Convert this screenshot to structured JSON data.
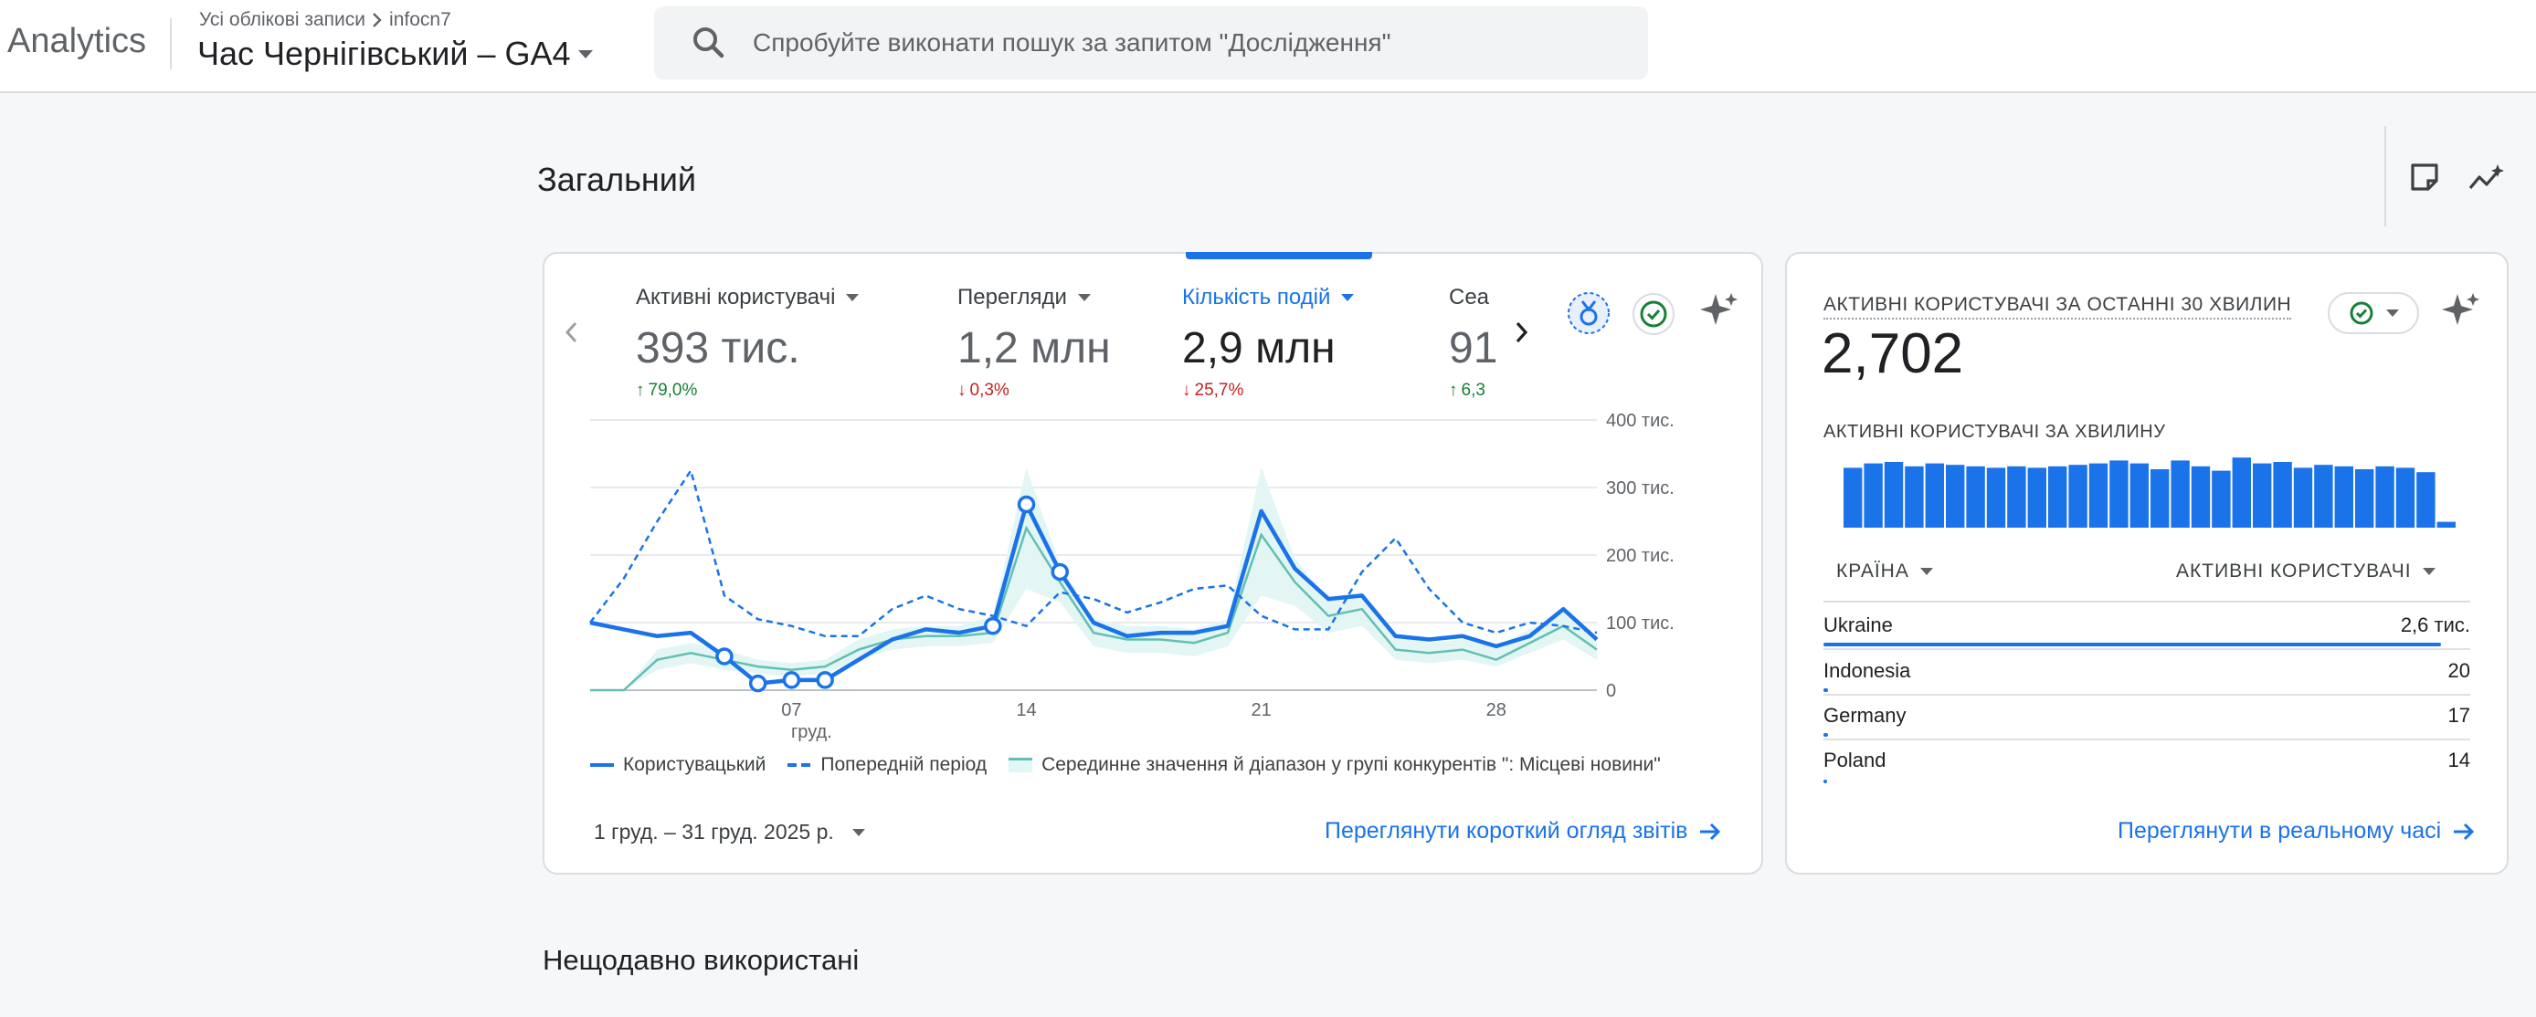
{
  "app": {
    "name": "Analytics",
    "breadcrumb": [
      "Усі облікові записи",
      "infocn7"
    ],
    "property": "Час Чернігівський – GA4"
  },
  "search": {
    "placeholder": "Спробуйте виконати пошук за запитом \"Дослідження\""
  },
  "page": {
    "title": "Загальний",
    "recent_title": "Нещодавно використані"
  },
  "overview": {
    "metrics": [
      {
        "label": "Активні користувачі",
        "value": "393 тис.",
        "delta": "79,0%",
        "direction": "up"
      },
      {
        "label": "Перегляди",
        "value": "1,2 млн",
        "delta": "0,3%",
        "direction": "down"
      },
      {
        "label": "Кількість подій",
        "value": "2,9 млн",
        "delta": "25,7%",
        "direction": "down",
        "active": true
      },
      {
        "label": "Сеа",
        "value": "91",
        "delta": "6,3",
        "direction": "up"
      }
    ],
    "date_range": "1 груд. – 31 груд. 2025 р.",
    "link": "Переглянути короткий огляд звітів",
    "legend": {
      "current": "Користувацький",
      "previous": "Попередній період",
      "benchmark": "Серединне значення й діапазон у групі конкурентів \": Місцеві новини\""
    }
  },
  "chart_data": {
    "type": "line",
    "x": [
      1,
      2,
      3,
      4,
      5,
      6,
      7,
      8,
      9,
      10,
      11,
      12,
      13,
      14,
      15,
      16,
      17,
      18,
      19,
      20,
      21,
      22,
      23,
      24,
      25,
      26,
      27,
      28,
      29,
      30,
      31
    ],
    "x_tick_labels": [
      {
        "x": 7,
        "label": "07",
        "sublabel": "груд."
      },
      {
        "x": 14,
        "label": "14"
      },
      {
        "x": 21,
        "label": "21"
      },
      {
        "x": 28,
        "label": "28"
      }
    ],
    "y_ticks": [
      "0",
      "100 тис.",
      "200 тис.",
      "300 тис.",
      "400 тис."
    ],
    "ylim": [
      0,
      400000
    ],
    "series": [
      {
        "name": "Користувацький",
        "style": "solid",
        "values": [
          100000,
          90000,
          80000,
          85000,
          50000,
          10000,
          15000,
          15000,
          45000,
          75000,
          90000,
          85000,
          95000,
          275000,
          175000,
          100000,
          80000,
          85000,
          85000,
          95000,
          265000,
          180000,
          135000,
          140000,
          80000,
          75000,
          80000,
          65000,
          80000,
          120000,
          75000
        ],
        "marked_points": [
          5,
          6,
          7,
          8,
          13,
          14,
          15
        ]
      },
      {
        "name": "Попередній період",
        "style": "dashed",
        "values": [
          100000,
          165000,
          250000,
          325000,
          140000,
          105000,
          95000,
          80000,
          80000,
          120000,
          140000,
          120000,
          110000,
          95000,
          145000,
          135000,
          115000,
          130000,
          150000,
          155000,
          110000,
          90000,
          90000,
          175000,
          225000,
          150000,
          100000,
          85000,
          100000,
          95000,
          85000
        ]
      },
      {
        "name": "Серединне значення й діапазон у групі конкурентів \": Місцеві новини\"",
        "style": "band",
        "values": [
          0,
          0,
          45000,
          55000,
          45000,
          35000,
          30000,
          35000,
          60000,
          75000,
          80000,
          80000,
          85000,
          240000,
          160000,
          85000,
          75000,
          75000,
          70000,
          85000,
          230000,
          160000,
          110000,
          120000,
          60000,
          55000,
          60000,
          45000,
          70000,
          95000,
          60000
        ],
        "range_high": [
          0,
          0,
          60000,
          70000,
          60000,
          45000,
          40000,
          45000,
          75000,
          90000,
          95000,
          95000,
          110000,
          330000,
          185000,
          105000,
          95000,
          95000,
          90000,
          105000,
          330000,
          195000,
          135000,
          145000,
          80000,
          70000,
          75000,
          65000,
          90000,
          115000,
          80000
        ],
        "range_low": [
          0,
          0,
          30000,
          40000,
          30000,
          25000,
          20000,
          25000,
          45000,
          60000,
          65000,
          65000,
          70000,
          150000,
          130000,
          65000,
          55000,
          55000,
          50000,
          65000,
          140000,
          125000,
          85000,
          95000,
          45000,
          40000,
          45000,
          35000,
          55000,
          75000,
          45000
        ]
      }
    ]
  },
  "realtime": {
    "title": "АКТИВНІ КОРИСТУВАЧІ ЗА ОСТАННІ 30 ХВИЛИН",
    "value": "2,702",
    "subtitle": "АКТИВНІ КОРИСТУВАЧІ ЗА ХВИЛИНУ",
    "per_minute": [
      82,
      88,
      90,
      84,
      88,
      86,
      84,
      82,
      84,
      82,
      84,
      86,
      88,
      92,
      88,
      80,
      92,
      84,
      78,
      96,
      88,
      90,
      82,
      86,
      84,
      80,
      84,
      82,
      76,
      8
    ],
    "col_country": "КРАЇНА",
    "col_users": "АКТИВНІ КОРИСТУВАЧІ",
    "countries": [
      {
        "name": "Ukraine",
        "value": "2,6 тис.",
        "share": 1.0
      },
      {
        "name": "Indonesia",
        "value": "20",
        "share": 0.008
      },
      {
        "name": "Germany",
        "value": "17",
        "share": 0.007
      },
      {
        "name": "Poland",
        "value": "14",
        "share": 0.006
      }
    ],
    "link": "Переглянути в реальному часі"
  },
  "colors": {
    "accent": "#1a73e8",
    "up": "#188038",
    "down": "#c5221f",
    "benchmark": "#63bfb2"
  }
}
